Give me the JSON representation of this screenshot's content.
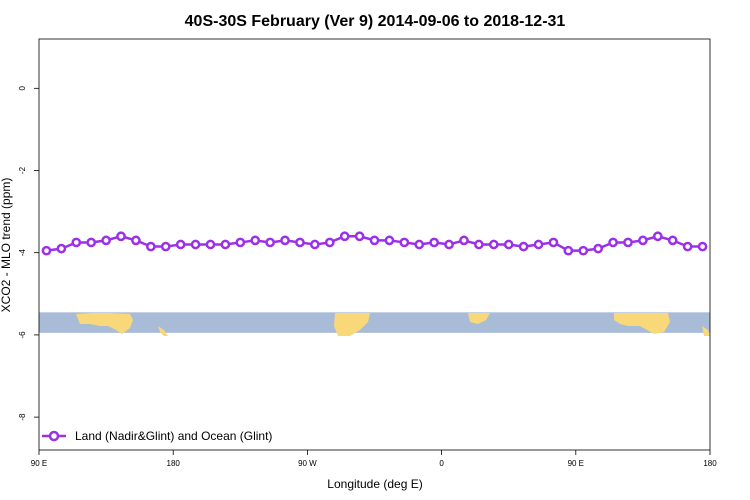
{
  "chart_data": {
    "type": "line",
    "title": "40S-30S February (Ver 9)   2014-09-06 to 2018-12-31",
    "xlabel": "Longitude (deg E)",
    "ylabel": "XCO2 - MLO trend (ppm)",
    "x_ticks": [
      {
        "value": 90,
        "label": "90 E"
      },
      {
        "value": 180,
        "label": "180"
      },
      {
        "value": 270,
        "label": "90 W"
      },
      {
        "value": 360,
        "label": "0"
      },
      {
        "value": 450,
        "label": "90 E"
      },
      {
        "value": 540,
        "label": "180"
      }
    ],
    "y_ticks": [
      {
        "value": 0,
        "label": "0"
      },
      {
        "value": -2,
        "label": "-2"
      },
      {
        "value": -4,
        "label": "-4"
      },
      {
        "value": -6,
        "label": "-6"
      },
      {
        "value": -8,
        "label": "-8"
      }
    ],
    "xlim": [
      90,
      540
    ],
    "ylim": [
      -8.8,
      1.2
    ],
    "grid": false,
    "legend_position": "bottom-left",
    "map_strip": {
      "y_top": -5.45,
      "y_bottom": -5.95,
      "ocean_color": "#a8bcd8",
      "land_color": "#f8d878"
    },
    "series": [
      {
        "name": "Land (Nadir&Glint) and Ocean (Glint)",
        "color": "#9b30e8",
        "x": [
          95,
          105,
          115,
          125,
          135,
          145,
          155,
          165,
          175,
          185,
          195,
          205,
          215,
          225,
          235,
          245,
          255,
          265,
          275,
          285,
          295,
          305,
          315,
          325,
          335,
          345,
          355,
          365,
          375,
          385,
          395,
          405,
          415,
          425,
          435,
          445,
          455,
          465,
          475,
          485,
          495,
          505,
          515,
          525,
          535
        ],
        "values": [
          -3.95,
          -3.9,
          -3.75,
          -3.75,
          -3.7,
          -3.6,
          -3.7,
          -3.85,
          -3.85,
          -3.8,
          -3.8,
          -3.8,
          -3.8,
          -3.75,
          -3.7,
          -3.75,
          -3.7,
          -3.75,
          -3.8,
          -3.75,
          -3.6,
          -3.6,
          -3.7,
          -3.7,
          -3.75,
          -3.8,
          -3.75,
          -3.8,
          -3.7,
          -3.8,
          -3.8,
          -3.8,
          -3.85,
          -3.8,
          -3.75,
          -3.95,
          -3.95,
          -3.9,
          -3.75,
          -3.75,
          -3.7,
          -3.6,
          -3.7,
          -3.85,
          -3.85
        ]
      }
    ]
  }
}
